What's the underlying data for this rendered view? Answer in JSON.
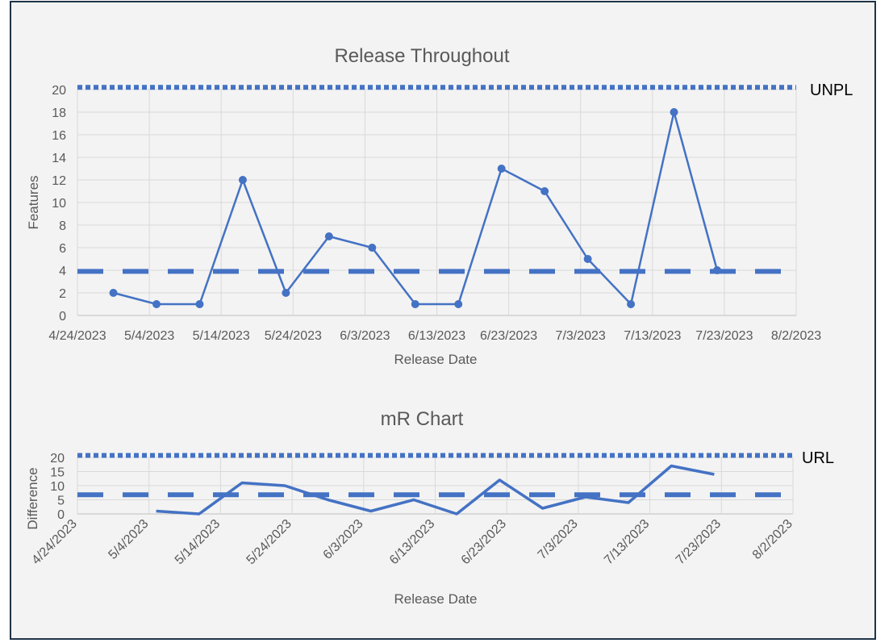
{
  "chart_data": [
    {
      "type": "line",
      "title": "Release Throughout",
      "xlabel": "Release Date",
      "ylabel": "Features",
      "xlim": [
        "2023-04-24",
        "2023-08-02"
      ],
      "ylim": [
        0,
        20
      ],
      "x_ticks": [
        "4/24/2023",
        "5/4/2023",
        "5/14/2023",
        "5/24/2023",
        "6/3/2023",
        "6/13/2023",
        "6/23/2023",
        "7/3/2023",
        "7/13/2023",
        "7/23/2023",
        "8/2/2023"
      ],
      "y_ticks": [
        "0",
        "2",
        "4",
        "6",
        "8",
        "10",
        "12",
        "14",
        "16",
        "18",
        "20"
      ],
      "grid": true,
      "series": [
        {
          "x": [
            "2023-04-29",
            "2023-05-05",
            "2023-05-11",
            "2023-05-17",
            "2023-05-23",
            "2023-05-29",
            "2023-06-04",
            "2023-06-10",
            "2023-06-16",
            "2023-06-22",
            "2023-06-28",
            "2023-07-04",
            "2023-07-10",
            "2023-07-16",
            "2023-07-22"
          ],
          "values": [
            2,
            1,
            1,
            12,
            2,
            7,
            6,
            1,
            1,
            13,
            11,
            5,
            1,
            18,
            4
          ],
          "color": "#4472c4",
          "markers": true
        }
      ],
      "reference_lines": [
        {
          "label": "UNPL",
          "value": 20.2,
          "style": "dotted",
          "color": "#4472c4"
        },
        {
          "label": "",
          "value": 3.9,
          "style": "dashed",
          "color": "#4472c4"
        }
      ]
    },
    {
      "type": "line",
      "title": "mR Chart",
      "xlabel": "Release Date",
      "ylabel": "Difference",
      "xlim": [
        "2023-04-24",
        "2023-08-02"
      ],
      "ylim": [
        0,
        20
      ],
      "x_ticks": [
        "4/24/2023",
        "5/4/2023",
        "5/14/2023",
        "5/24/2023",
        "6/3/2023",
        "6/13/2023",
        "6/23/2023",
        "7/3/2023",
        "7/13/2023",
        "7/23/2023",
        "8/2/2023"
      ],
      "y_ticks": [
        "0",
        "5",
        "10",
        "15",
        "20"
      ],
      "grid": true,
      "series": [
        {
          "x": [
            "2023-05-05",
            "2023-05-11",
            "2023-05-17",
            "2023-05-23",
            "2023-05-29",
            "2023-06-04",
            "2023-06-10",
            "2023-06-16",
            "2023-06-22",
            "2023-06-28",
            "2023-07-04",
            "2023-07-10",
            "2023-07-16",
            "2023-07-22"
          ],
          "values": [
            1,
            0,
            11,
            10,
            5,
            1,
            5,
            0,
            12,
            2,
            6,
            4,
            17,
            14
          ],
          "color": "#4472c4",
          "markers": false
        }
      ],
      "reference_lines": [
        {
          "label": "URL",
          "value": 20.7,
          "style": "dotted",
          "color": "#4472c4"
        },
        {
          "label": "",
          "value": 6.8,
          "style": "dashed",
          "color": "#4472c4"
        }
      ]
    }
  ]
}
